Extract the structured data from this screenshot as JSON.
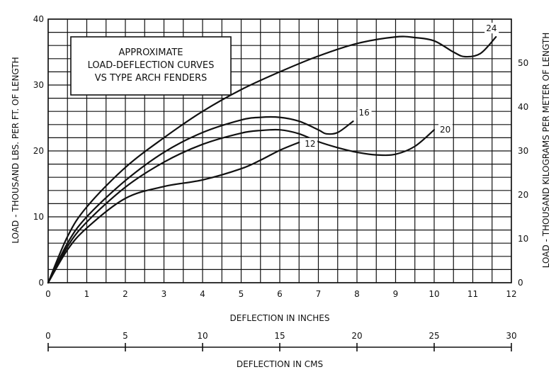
{
  "chart_data": {
    "type": "line",
    "title_lines": [
      "APPROXIMATE",
      "LOAD-DEFLECTION CURVES",
      "VS TYPE ARCH FENDERS"
    ],
    "xlabel": "DEFLECTION IN INCHES",
    "ylabel_left": "LOAD - THOUSAND LBS. PER FT. OF LENGTH",
    "ylabel_right": "LOAD - THOUSAND KILOGRAMS PER METER OF LENGTH",
    "x2label": "DEFLECTION IN CMS",
    "xlim": [
      0,
      12
    ],
    "ylim": [
      0,
      40
    ],
    "ylim_right": [
      0,
      60
    ],
    "x2lim": [
      0,
      30
    ],
    "x_ticks": [
      "0",
      "1",
      "2",
      "3",
      "4",
      "5",
      "6",
      "7",
      "8",
      "9",
      "10",
      "11",
      "12"
    ],
    "y_ticks_left": [
      "0",
      "10",
      "20",
      "30",
      "40"
    ],
    "y_ticks_right": [
      "0",
      "10",
      "20",
      "30",
      "40",
      "50"
    ],
    "x2_ticks": [
      "0",
      "5",
      "10",
      "15",
      "20",
      "25",
      "30"
    ],
    "grid": true,
    "series": [
      {
        "name": "24",
        "x": [
          0,
          0.5,
          1,
          2,
          3,
          4,
          5,
          6,
          7,
          8,
          9,
          9.5,
          10,
          10.5,
          10.8,
          11.2,
          11.6
        ],
        "y": [
          0,
          7,
          11.5,
          17.5,
          22,
          26,
          29.3,
          32,
          34.4,
          36.3,
          37.3,
          37.2,
          36.7,
          35,
          34.3,
          34.8,
          37.3
        ]
      },
      {
        "name": "16",
        "x": [
          0,
          0.5,
          1,
          2,
          3,
          4,
          5,
          5.5,
          6,
          6.5,
          7,
          7.2,
          7.5,
          7.9
        ],
        "y": [
          0,
          6,
          10,
          15.5,
          19.8,
          22.8,
          24.7,
          25.1,
          25.1,
          24.5,
          23.2,
          22.6,
          22.8,
          24.5
        ]
      },
      {
        "name": "20",
        "x": [
          0,
          0.5,
          1,
          2,
          3,
          4,
          5,
          5.5,
          6,
          6.5,
          7,
          7.5,
          8,
          8.5,
          9,
          9.5,
          10
        ],
        "y": [
          0,
          5.5,
          9.2,
          14.5,
          18.3,
          21,
          22.7,
          23.1,
          23.2,
          22.6,
          21.4,
          20.5,
          19.8,
          19.4,
          19.5,
          20.7,
          23.2
        ]
      },
      {
        "name": "12",
        "x": [
          0,
          0.5,
          1,
          2,
          3,
          4,
          5,
          5.5,
          6,
          6.5
        ],
        "y": [
          0,
          5,
          8.3,
          12.8,
          14.6,
          15.6,
          17.3,
          18.6,
          20.1,
          21.3
        ]
      }
    ]
  }
}
